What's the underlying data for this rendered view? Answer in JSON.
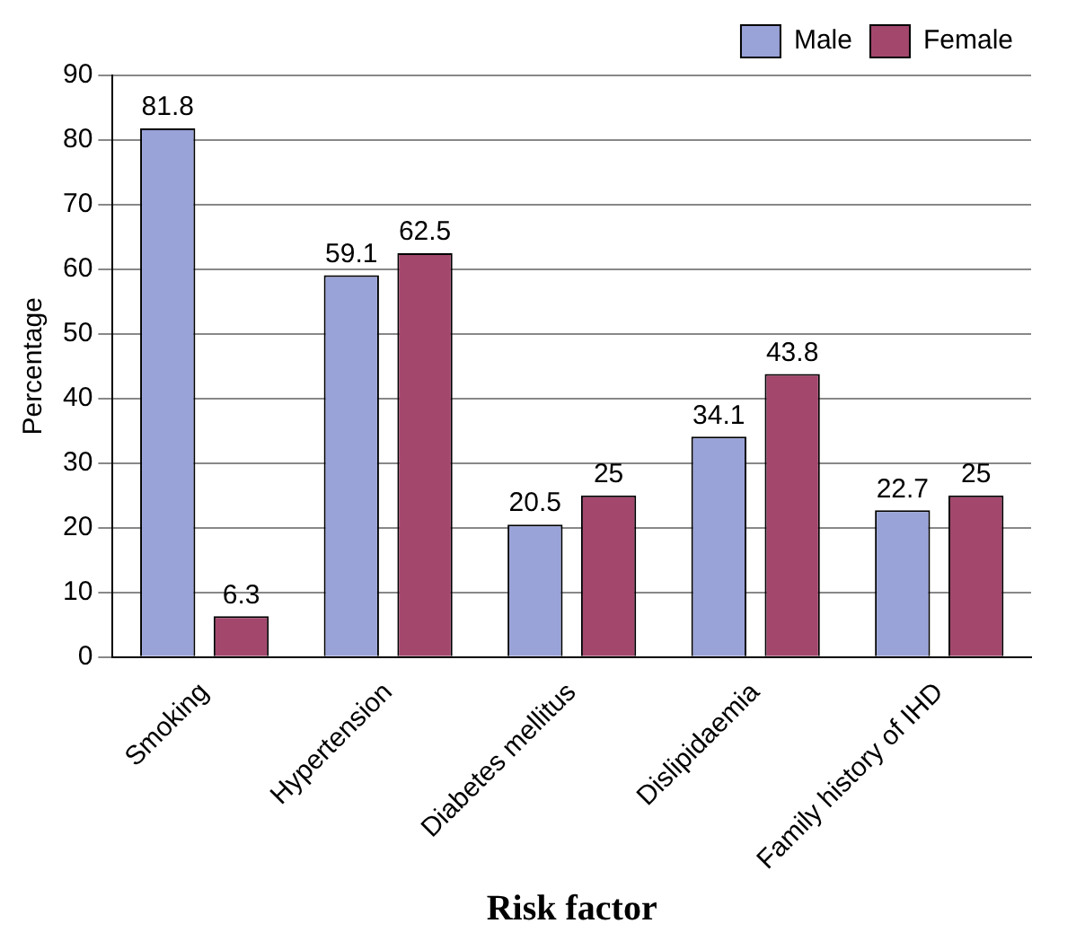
{
  "chart_data": {
    "type": "bar",
    "xlabel": "Risk factor",
    "ylabel": "Percentage",
    "categories": [
      "Smoking",
      "Hypertension",
      "Diabetes mellitus",
      "Dislipidaemia",
      "Family history of IHD"
    ],
    "series": [
      {
        "name": "Male",
        "color": "#99a3d8",
        "values": [
          81.8,
          59.1,
          20.5,
          34.1,
          22.7
        ]
      },
      {
        "name": "Female",
        "color": "#a3476d",
        "values": [
          6.3,
          62.5,
          25,
          43.8,
          25
        ]
      }
    ],
    "ylim": [
      0,
      90
    ],
    "yticks": [
      0,
      10,
      20,
      30,
      40,
      50,
      60,
      70,
      80,
      90
    ],
    "grid": "y",
    "legend": "top right",
    "data_labels": true
  }
}
